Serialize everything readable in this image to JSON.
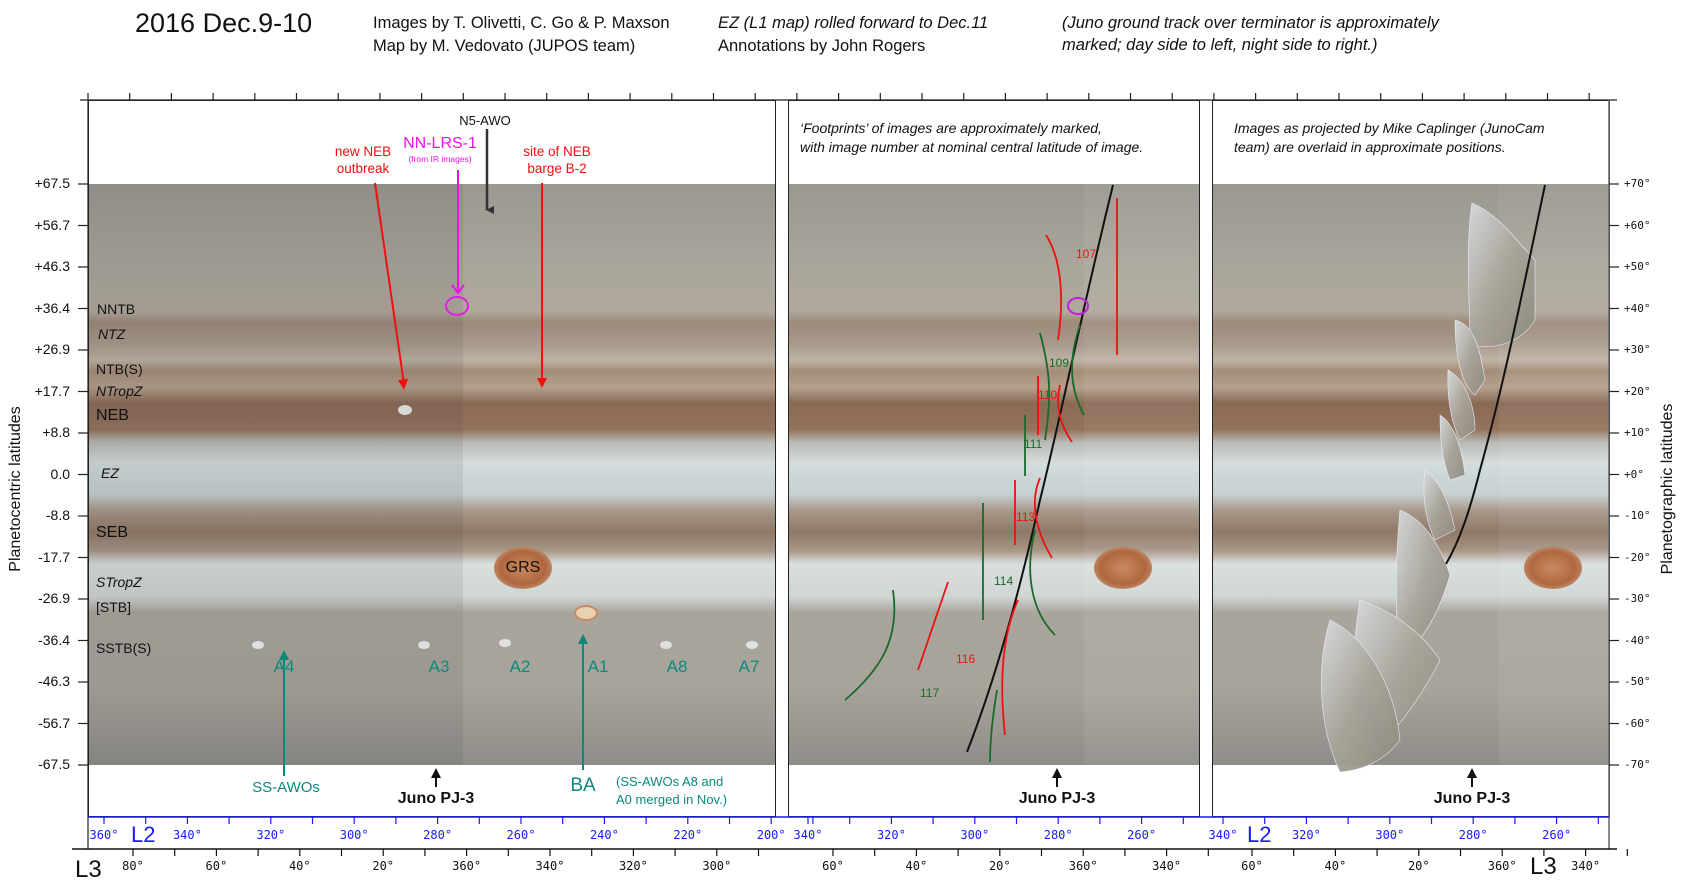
{
  "header": {
    "title": "2016 Dec.9-10",
    "credits_line1": "Images by T. Olivetti, C. Go & P. Maxson",
    "credits_line2": "Map by M. Vedovato (JUPOS team)",
    "ez_note": "EZ (L1 map) rolled forward to Dec.11",
    "annotations_credit": "Annotations by John Rogers",
    "track_note_line1": "(Juno ground track over terminator is approximately",
    "track_note_line2": "marked;  day side to left, night side to right.)"
  },
  "axes": {
    "left_title": "Planetocentric latitudes",
    "right_title": "Planetographic latitudes",
    "left_ticks": [
      "+67.5",
      "+56.7",
      "+46.3",
      "+36.4",
      "+26.9",
      "+17.7",
      "+8.8",
      "0.0",
      "-8.8",
      "-17.7",
      "-26.9",
      "-36.4",
      "-46.3",
      "-56.7",
      "-67.5"
    ],
    "right_ticks": [
      "+70°",
      "+60°",
      "+50°",
      "+40°",
      "+30°",
      "+20°",
      "+10°",
      "+0°",
      "-10°",
      "-20°",
      "-30°",
      "-40°",
      "-50°",
      "-60°",
      "-70°"
    ],
    "l2_label": "L2",
    "l3_label": "L3",
    "panel1_l2": [
      "360°",
      "340°",
      "320°",
      "300°",
      "280°",
      "260°",
      "240°",
      "220°",
      "200°"
    ],
    "panel1_l3": [
      "80°",
      "60°",
      "40°",
      "20°",
      "360°",
      "340°",
      "320°",
      "300°"
    ],
    "panel2_l2": [
      "340°",
      "320°",
      "300°",
      "280°",
      "260°"
    ],
    "panel2_l3": [
      "60°",
      "40°",
      "20°",
      "360°",
      "340°"
    ],
    "panel3_l2": [
      "340°",
      "320°",
      "300°",
      "280°",
      "260°"
    ],
    "panel3_l3": [
      "60°",
      "40°",
      "20°",
      "360°",
      "340°"
    ]
  },
  "panel1": {
    "bands": [
      "NNTB",
      "NTZ",
      "NTB(S)",
      "NTropZ",
      "NEB",
      "EZ",
      "SEB",
      "STropZ",
      "[STB]",
      "SSTB(S)"
    ],
    "n5_awo": "N5-AWO",
    "nn_lrs": "NN-LRS-1",
    "nn_lrs_note": "(from IR images)",
    "new_neb": [
      "new NEB",
      "outbreak"
    ],
    "barge": [
      "site of NEB",
      "barge B-2"
    ],
    "grs": "GRS",
    "awos": [
      "A4",
      "A3",
      "A2",
      "A1",
      "A8",
      "A7"
    ],
    "ss_awos": "SS-AWOs",
    "ba": "BA",
    "ba_note": [
      "(SS-AWOs A8 and",
      "A0 merged in Nov.)"
    ],
    "juno": "Juno PJ-3"
  },
  "panel2": {
    "caption": [
      "‘Footprints’ of images are approximately marked,",
      "with image number at nominal central latitude of image."
    ],
    "footprints": [
      "107",
      "109",
      "110",
      "111",
      "113",
      "114",
      "116",
      "117"
    ],
    "juno": "Juno PJ-3"
  },
  "panel3": {
    "caption": [
      "Images as projected by Mike Caplinger (JunoCam",
      "team) are overlaid in approximate positions."
    ],
    "juno": "Juno PJ-3"
  },
  "colors": {
    "annotation_red": "#f01010",
    "annotation_magenta": "#f010f0",
    "annotation_teal": "#0a8a7a",
    "footprint_green": "#1a6a2a",
    "l2_axis": "#1a1aff"
  }
}
